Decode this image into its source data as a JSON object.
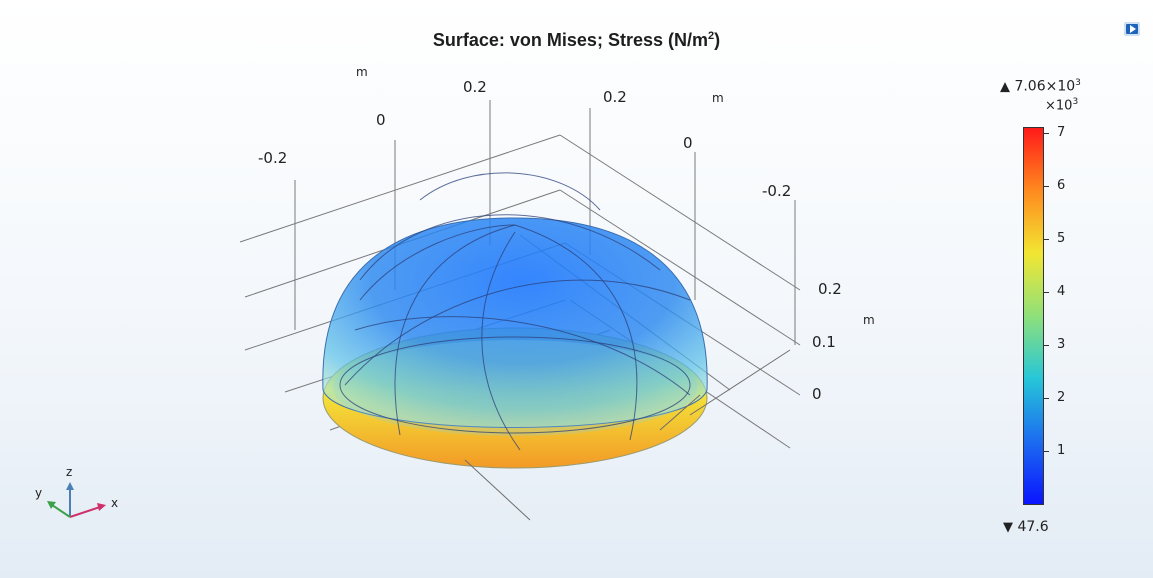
{
  "title": {
    "prefix": "Surface: von Mises; Stress (N/m",
    "sup": "2",
    "suffix": ")"
  },
  "axes": {
    "x_ticks": [
      "-0.2",
      "0",
      "0.2"
    ],
    "y_ticks": [
      "0.2",
      "0",
      "-0.2"
    ],
    "z_ticks": [
      "0.2",
      "0.1",
      "0"
    ],
    "unit": "m"
  },
  "colorbar": {
    "max_mantissa": "7.06×10",
    "max_exp": "3",
    "multiplier_base": "×10",
    "multiplier_exp": "3",
    "min_value": "47.6",
    "tick_labels": [
      "7",
      "6",
      "5",
      "4",
      "3",
      "2",
      "1"
    ],
    "colors": [
      "#0a14ff",
      "#1c6cf0",
      "#26c6d8",
      "#8fe07a",
      "#f2e632",
      "#ff8a1e",
      "#ff1a1a"
    ]
  },
  "triad": {
    "x": "x",
    "y": "y",
    "z": "z"
  },
  "icons": {
    "export": "export-image-icon",
    "max_marker": "triangle-up-icon",
    "min_marker": "triangle-down-icon"
  }
}
